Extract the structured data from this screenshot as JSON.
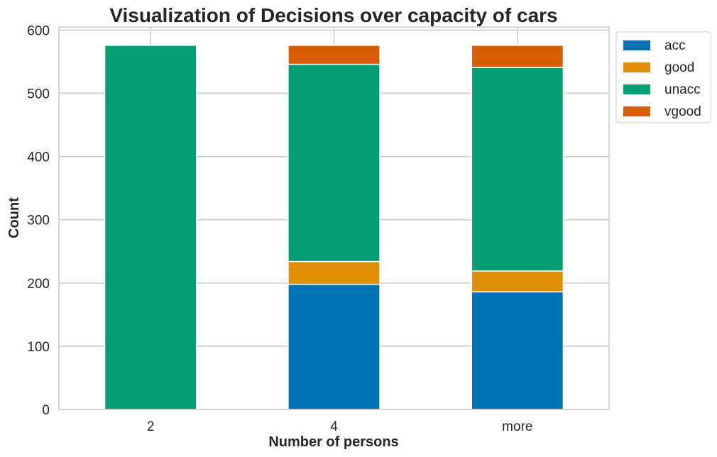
{
  "chart_data": {
    "type": "bar",
    "stacked": true,
    "title": "Visualization of Decisions over capacity of cars",
    "xlabel": "Number of persons",
    "ylabel": "Count",
    "categories": [
      "2",
      "4",
      "more"
    ],
    "ylim": [
      0,
      605
    ],
    "yticks": [
      0,
      100,
      200,
      300,
      400,
      500,
      600
    ],
    "grid": true,
    "legend_position": "outside-top-right",
    "series": [
      {
        "name": "acc",
        "color": "#0173b2",
        "values": [
          0,
          198,
          186
        ]
      },
      {
        "name": "good",
        "color": "#de8f05",
        "values": [
          0,
          36,
          33
        ]
      },
      {
        "name": "unacc",
        "color": "#029e73",
        "values": [
          576,
          312,
          322
        ]
      },
      {
        "name": "vgood",
        "color": "#d55e00",
        "values": [
          0,
          30,
          35
        ]
      }
    ]
  }
}
